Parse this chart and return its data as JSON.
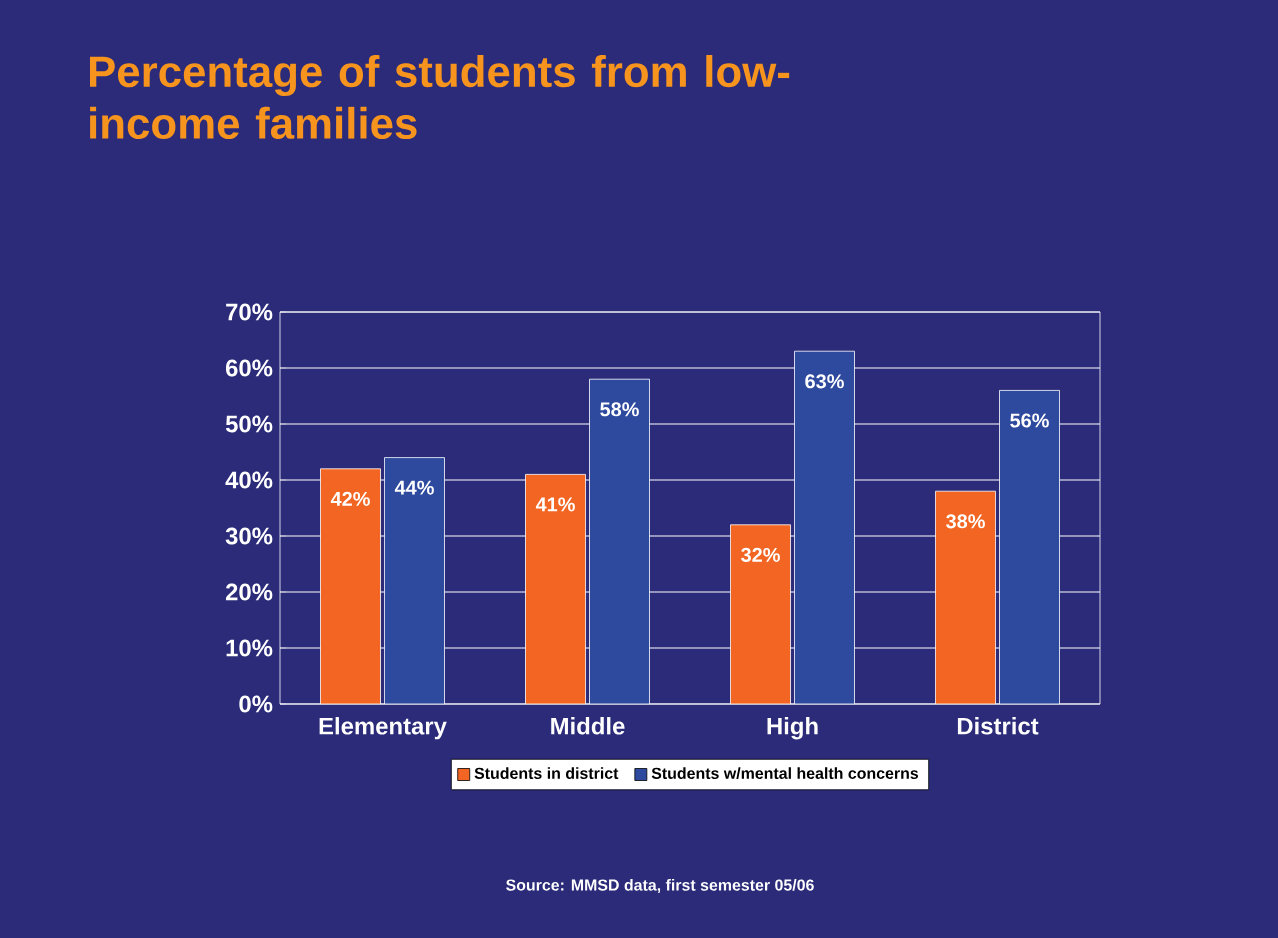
{
  "chart_data": {
    "type": "bar",
    "title": "Percentage of students from low-income families",
    "categories": [
      "Elementary",
      "Middle",
      "High",
      "District"
    ],
    "series": [
      {
        "name": "Students in district",
        "color": "#f26522",
        "values": [
          42,
          41,
          32,
          38
        ],
        "value_labels": [
          "42%",
          "41%",
          "32%",
          "38%"
        ]
      },
      {
        "name": "Students w/mental health concerns",
        "color": "#2e4a9e",
        "values": [
          44,
          58,
          63,
          56
        ],
        "value_labels": [
          "44%",
          "58%",
          "63%",
          "56%"
        ]
      }
    ],
    "ylim": [
      0,
      70
    ],
    "yticks": [
      {
        "value": 0,
        "label": "0%"
      },
      {
        "value": 10,
        "label": "10%"
      },
      {
        "value": 20,
        "label": "20%"
      },
      {
        "value": 30,
        "label": "30%"
      },
      {
        "value": 40,
        "label": "40%"
      },
      {
        "value": 50,
        "label": "50%"
      },
      {
        "value": 60,
        "label": "60%"
      },
      {
        "value": 70,
        "label": "70%"
      }
    ],
    "grid": "y",
    "legend": "bottom",
    "annotations": [
      "Source:  MMSD data, first semester 05/06"
    ]
  }
}
